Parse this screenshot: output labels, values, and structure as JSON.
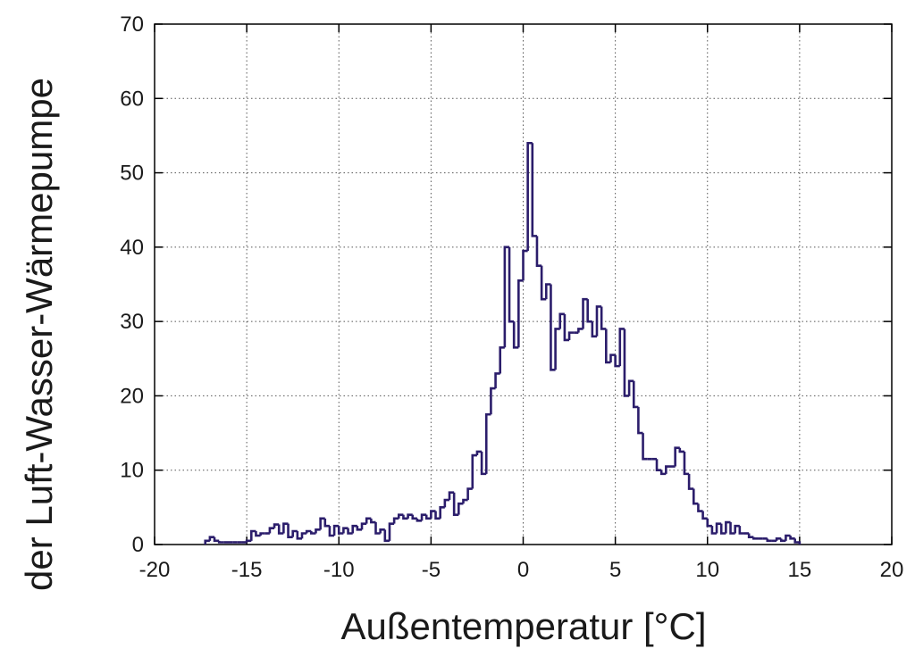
{
  "chart_data": {
    "type": "histogram",
    "xlabel": "Außentemperatur [°C]",
    "ylabel": "der Luft-Wasser-Wärmepumpe",
    "color": "#2b1d6b",
    "grid": true,
    "xlim": [
      -20,
      20
    ],
    "xticks": [
      -20,
      -15,
      -10,
      -5,
      0,
      5,
      10,
      15,
      20
    ],
    "ylim": [
      0,
      70
    ],
    "yticks": [
      0,
      10,
      20,
      30,
      40,
      50,
      60,
      70
    ],
    "bins": [
      -17.25,
      -17,
      -16.75,
      -16.5,
      -16.25,
      -16,
      -15.75,
      -15.5,
      -15.25,
      -15,
      -14.75,
      -14.5,
      -14.25,
      -14,
      -13.75,
      -13.5,
      -13.25,
      -13,
      -12.75,
      -12.5,
      -12.25,
      -12,
      -11.75,
      -11.5,
      -11.25,
      -11,
      -10.75,
      -10.5,
      -10.25,
      -10,
      -9.75,
      -9.5,
      -9.25,
      -9,
      -8.75,
      -8.5,
      -8.25,
      -8,
      -7.75,
      -7.5,
      -7.25,
      -7,
      -6.75,
      -6.5,
      -6.25,
      -6,
      -5.75,
      -5.5,
      -5.25,
      -5,
      -4.75,
      -4.5,
      -4.25,
      -4,
      -3.75,
      -3.5,
      -3.25,
      -3,
      -2.75,
      -2.5,
      -2.25,
      -2,
      -1.75,
      -1.5,
      -1.25,
      -1,
      -0.75,
      -0.5,
      -0.25,
      0,
      0.25,
      0.5,
      0.75,
      1,
      1.25,
      1.5,
      1.75,
      2,
      2.25,
      2.5,
      2.75,
      3,
      3.25,
      3.5,
      3.75,
      4,
      4.25,
      4.5,
      4.75,
      5,
      5.25,
      5.5,
      5.75,
      6,
      6.25,
      6.5,
      6.75,
      7,
      7.25,
      7.5,
      7.75,
      8,
      8.25,
      8.5,
      8.75,
      9,
      9.25,
      9.5,
      9.75,
      10,
      10.25,
      10.5,
      10.75,
      11,
      11.25,
      11.5,
      11.75,
      12,
      12.25,
      12.5,
      12.75,
      13,
      13.25,
      13.5,
      13.75,
      14,
      14.25,
      14.5,
      14.75,
      15
    ],
    "counts": [
      0.5,
      1,
      0.5,
      0.3,
      0.3,
      0.3,
      0.3,
      0.3,
      0.3,
      0.5,
      1.8,
      1.2,
      1.5,
      1.5,
      2.2,
      2.7,
      1.5,
      2.8,
      1.0,
      1.8,
      0.8,
      1.5,
      1.8,
      1.5,
      2.0,
      3.5,
      2.5,
      1.2,
      2.5,
      1.5,
      2.2,
      1.5,
      2.5,
      2.0,
      2.8,
      3.5,
      3.0,
      1.5,
      2.0,
      0.5,
      2.8,
      3.5,
      4.0,
      3.5,
      4.0,
      3.5,
      3.2,
      4.0,
      3.5,
      4.5,
      3.5,
      5.0,
      6.0,
      7.0,
      4.0,
      5.5,
      6.0,
      7.5,
      12,
      12.5,
      9.5,
      17.5,
      21,
      23,
      26.5,
      40,
      30,
      26.5,
      35.5,
      39.5,
      54,
      41.5,
      37.5,
      33,
      35,
      23.5,
      29,
      31,
      27.5,
      28.5,
      28.5,
      29,
      33,
      30,
      28,
      32,
      29,
      24.5,
      25.5,
      24,
      29,
      20,
      22,
      18.5,
      15,
      11.5,
      11.5,
      11.5,
      10,
      9.5,
      10.5,
      10.5,
      13,
      12.5,
      9.5,
      7.5,
      5.5,
      4.5,
      3.5,
      2.5,
      1.5,
      2.8,
      1.5,
      3,
      1.5,
      2.5,
      1.5,
      1.5,
      1.0,
      0.8,
      0.8,
      0.8,
      0.5,
      0.5,
      0.8,
      0.5,
      1.2,
      0.8,
      0.3
    ]
  }
}
